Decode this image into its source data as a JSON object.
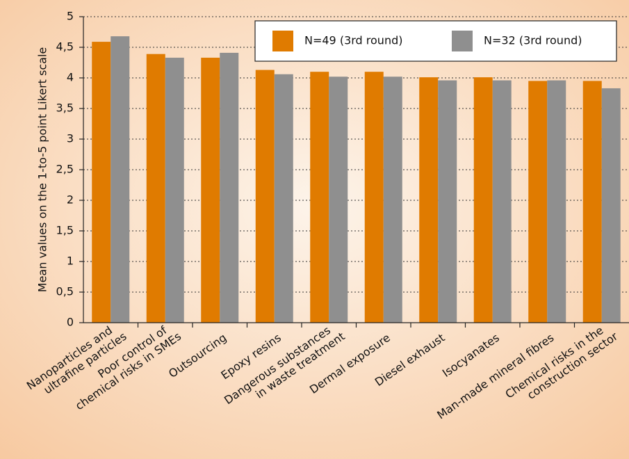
{
  "chart_data": {
    "type": "bar",
    "y_label": "Mean values on the 1-to-5 point Likert scale",
    "categories": [
      [
        "Nanoparticles and",
        "ultrafine particles"
      ],
      [
        "Poor control of",
        "chemical risks in SMEs"
      ],
      [
        "Outsourcing"
      ],
      [
        "Epoxy resins"
      ],
      [
        "Dangerous substances",
        "in waste treatment"
      ],
      [
        "Dermal exposure"
      ],
      [
        "Diesel exhaust"
      ],
      [
        "Isocyanates"
      ],
      [
        "Man-made mineral fibres"
      ],
      [
        "Chemical risks in the",
        "construction sector"
      ]
    ],
    "series": [
      {
        "name": "N=49 (3rd round)",
        "color": "#e07b00",
        "values": [
          4.59,
          4.39,
          4.33,
          4.13,
          4.1,
          4.1,
          4.01,
          4.01,
          3.95,
          3.95
        ]
      },
      {
        "name": "N=32 (3rd round)",
        "color": "#8f8f8f",
        "values": [
          4.68,
          4.33,
          4.41,
          4.06,
          4.02,
          4.02,
          3.96,
          3.96,
          3.96,
          3.83
        ]
      }
    ],
    "ylim": [
      0,
      5
    ],
    "yticks": [
      0,
      {
        "value": 0.5,
        "label": "0,5"
      },
      1,
      {
        "value": 1.5,
        "label": "1,5"
      },
      2,
      {
        "value": 2.5,
        "label": "2,5"
      },
      3,
      {
        "value": 3.5,
        "label": "3,5"
      },
      4,
      {
        "value": 4.5,
        "label": "4,5"
      },
      5
    ],
    "grid": true,
    "legend": "top-right"
  }
}
